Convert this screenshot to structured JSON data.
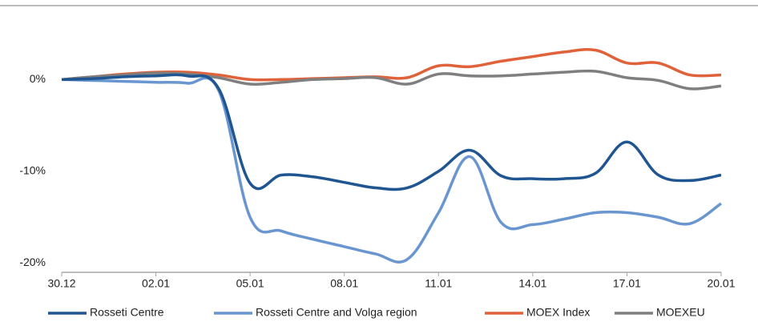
{
  "chart_data": {
    "type": "line",
    "categories": [
      "30.12",
      null,
      null,
      "02.01",
      null,
      null,
      "05.01",
      null,
      null,
      "08.01",
      null,
      null,
      "11.01",
      null,
      null,
      "14.01",
      null,
      null,
      "17.01",
      null,
      null,
      "20.01"
    ],
    "series": [
      {
        "name": "Rosseti Centre",
        "color": "#1f5591",
        "values": [
          0,
          0.1,
          0.3,
          0.4,
          0.4,
          -1,
          -11.3,
          -10.4,
          -10.6,
          -11.2,
          -11.8,
          -11.8,
          -10,
          -7.7,
          -10.5,
          -10.8,
          -10.8,
          -10.2,
          -6.8,
          -10.4,
          -11,
          -10.4
        ]
      },
      {
        "name": "Rosseti Centre and Volga region",
        "color": "#6a96d0",
        "values": [
          0,
          -0.1,
          -0.2,
          -0.3,
          -0.4,
          -1.2,
          -15,
          -16.5,
          -17.4,
          -18.2,
          -19,
          -19.6,
          -14.5,
          -8.4,
          -15.6,
          -15.8,
          -15.2,
          -14.5,
          -14.5,
          -15,
          -15.7,
          -13.5
        ]
      },
      {
        "name": "MOEX Index",
        "color": "#e0623a",
        "values": [
          0,
          0.3,
          0.6,
          0.8,
          0.8,
          0.5,
          0,
          0,
          0.1,
          0.2,
          0.3,
          0.2,
          1.5,
          1.4,
          2,
          2.5,
          3,
          3.2,
          1.8,
          1.8,
          0.5,
          0.5
        ]
      },
      {
        "name": "MOEXEU",
        "color": "#7f7f7f",
        "values": [
          0,
          0.3,
          0.5,
          0.7,
          0.6,
          0.2,
          -0.5,
          -0.3,
          0,
          0.1,
          0.2,
          -0.5,
          0.6,
          0.4,
          0.4,
          0.6,
          0.8,
          0.9,
          0.2,
          -0.1,
          -1,
          -0.7
        ]
      }
    ],
    "ylim": [
      -21,
      5
    ],
    "yticks": [
      {
        "value": -20,
        "label": "-20%"
      },
      {
        "value": -10,
        "label": "-10%"
      },
      {
        "value": 0,
        "label": "0%"
      }
    ],
    "legend": "bottom"
  }
}
